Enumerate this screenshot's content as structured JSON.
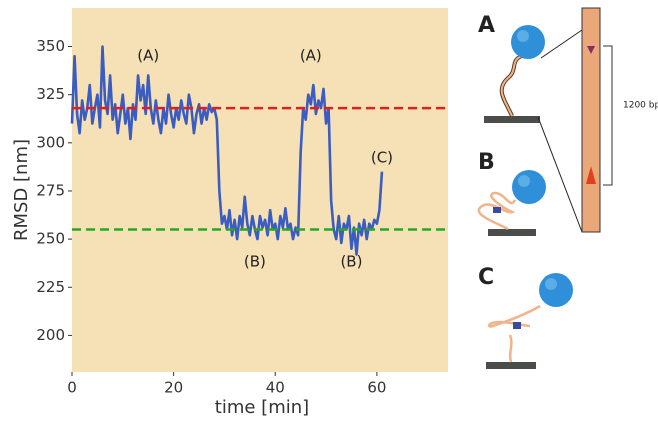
{
  "chart_data": {
    "type": "line",
    "xlabel": "time [min]",
    "ylabel": "RMSD [nm]",
    "xlim": [
      0,
      74
    ],
    "ylim": [
      181,
      370
    ],
    "xticks": [
      0,
      20,
      40,
      60
    ],
    "yticks": [
      200,
      225,
      250,
      275,
      300,
      325,
      350
    ],
    "background": "#f5e1b5",
    "color": "#3b5cc0",
    "x": [
      0,
      0.5,
      1,
      1.5,
      2,
      2.5,
      3,
      3.5,
      4,
      4.5,
      5,
      5.5,
      6,
      6.5,
      7,
      7.5,
      8,
      8.5,
      9,
      9.5,
      10,
      10.5,
      11,
      11.5,
      12,
      12.5,
      13,
      13.5,
      14,
      14.5,
      15,
      15.5,
      16,
      16.5,
      17,
      17.5,
      18,
      18.5,
      19,
      19.5,
      20,
      20.5,
      21,
      21.5,
      22,
      22.5,
      23,
      23.5,
      24,
      24.5,
      25,
      25.5,
      26,
      26.5,
      27,
      27.5,
      28,
      28.5,
      29,
      29.5,
      30,
      30.5,
      31,
      31.5,
      32,
      32.5,
      33,
      33.5,
      34,
      34.5,
      35,
      35.5,
      36,
      36.5,
      37,
      37.5,
      38,
      38.5,
      39,
      39.5,
      40,
      40.5,
      41,
      41.5,
      42,
      42.5,
      43,
      43.5,
      44,
      44.5,
      45,
      45.5,
      46,
      46.5,
      47,
      47.5,
      48,
      48.5,
      49,
      49.5,
      50,
      50.5,
      51,
      51.5,
      52,
      52.5,
      53,
      53.5,
      54,
      54.5,
      55,
      55.5,
      56,
      56.5,
      57,
      57.5,
      58,
      58.5,
      59,
      59.5,
      60,
      60.5,
      61
    ],
    "values": [
      310,
      345,
      315,
      305,
      322,
      312,
      318,
      330,
      310,
      318,
      325,
      308,
      350,
      322,
      315,
      335,
      312,
      320,
      305,
      315,
      325,
      310,
      318,
      302,
      320,
      312,
      335,
      322,
      330,
      315,
      335,
      318,
      310,
      322,
      312,
      305,
      318,
      310,
      325,
      315,
      308,
      318,
      312,
      322,
      315,
      310,
      325,
      318,
      305,
      315,
      320,
      310,
      318,
      312,
      320,
      316,
      318,
      312,
      275,
      258,
      262,
      255,
      265,
      252,
      260,
      250,
      262,
      256,
      272,
      258,
      252,
      262,
      255,
      250,
      262,
      256,
      260,
      252,
      265,
      255,
      258,
      250,
      262,
      256,
      266,
      255,
      258,
      250,
      256,
      252,
      295,
      318,
      312,
      325,
      320,
      330,
      315,
      322,
      318,
      328,
      310,
      318,
      270,
      255,
      250,
      262,
      248,
      258,
      255,
      262,
      245,
      256,
      242,
      258,
      252,
      260,
      250,
      258,
      255,
      260,
      258,
      265,
      285
    ],
    "hlines": [
      {
        "value": 318,
        "color": "#e0201c"
      },
      {
        "value": 255,
        "color": "#2aa52a"
      }
    ],
    "annotations": [
      {
        "text": "(A)",
        "x": 15,
        "y": 345
      },
      {
        "text": "(A)",
        "x": 47,
        "y": 345
      },
      {
        "text": "(B)",
        "x": 36,
        "y": 238
      },
      {
        "text": "(B)",
        "x": 55,
        "y": 238
      },
      {
        "text": "(C)",
        "x": 61,
        "y": 292
      }
    ]
  },
  "diagram": {
    "panels": [
      "A",
      "B",
      "C"
    ],
    "length_label": "1200 bp"
  }
}
